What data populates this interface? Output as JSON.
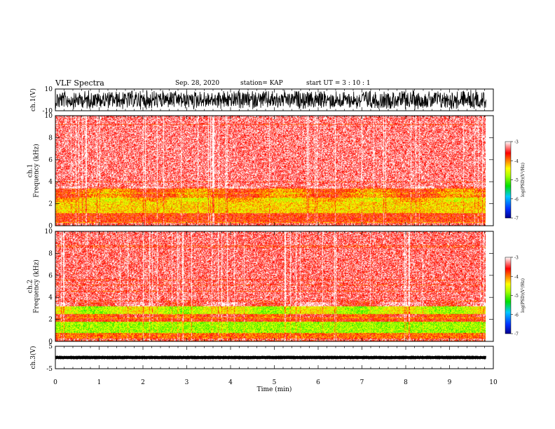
{
  "header": {
    "title": "VLF Spectra",
    "date": "Sep. 28, 2020",
    "station": "station= KAP",
    "start": "start  UT =   3  : 10 : 1"
  },
  "chart_data": [
    {
      "type": "line",
      "panel": "ch1-waveform",
      "ylabel": "ch.1(V)",
      "ylim": [
        -10,
        10
      ],
      "yticks": [
        "10",
        "-10"
      ],
      "xlim": [
        0,
        10
      ],
      "data_xmax": 9.83,
      "note_shape": "dense noisy waveform filling most of range"
    },
    {
      "type": "heatmap",
      "panel": "ch1-spectrogram",
      "ylabel_top": "ch.1",
      "ylabel": "Frequency  (kHz)",
      "ylim": [
        0,
        10
      ],
      "yticks": [
        "0",
        "2",
        "4",
        "6",
        "8",
        "10"
      ],
      "xlim": [
        0,
        10
      ],
      "data_xmax": 9.83,
      "colorbar": {
        "label": "log(PSD)(V²/Hz)",
        "range": [
          -7,
          -3
        ],
        "ticks": [
          "-3",
          "-4",
          "-5",
          "-6",
          "-7"
        ]
      },
      "band_profile": [
        {
          "f_from": 3.4,
          "f_to": 10,
          "level": -3.3
        },
        {
          "f_from": 2.6,
          "f_to": 3.4,
          "level": -3.9
        },
        {
          "f_from": 1.2,
          "f_to": 2.6,
          "level": -4.3
        },
        {
          "f_from": 0.3,
          "f_to": 1.2,
          "level": -3.7
        },
        {
          "f_from": 0,
          "f_to": 0.3,
          "level": -3.4
        }
      ]
    },
    {
      "type": "heatmap",
      "panel": "ch2-spectrogram",
      "ylabel_top": "ch.2",
      "ylabel": "Frequency  (kHz)",
      "ylim": [
        0,
        10
      ],
      "yticks": [
        "0",
        "2",
        "4",
        "6",
        "8",
        "10"
      ],
      "xlim": [
        0,
        10
      ],
      "data_xmax": 9.83,
      "colorbar": {
        "label": "log(PSD)(V²/Hz)",
        "range": [
          -7,
          -3
        ],
        "ticks": [
          "-3",
          "-4",
          "-5",
          "-6",
          "-7"
        ]
      },
      "band_profile": [
        {
          "f_from": 3.2,
          "f_to": 10,
          "level": -3.35
        },
        {
          "f_from": 2.5,
          "f_to": 3.2,
          "level": -4.6
        },
        {
          "f_from": 1.8,
          "f_to": 2.5,
          "level": -3.7
        },
        {
          "f_from": 0.8,
          "f_to": 1.8,
          "level": -4.8
        },
        {
          "f_from": 0.3,
          "f_to": 0.8,
          "level": -3.9
        },
        {
          "f_from": 0,
          "f_to": 0.3,
          "level": -3.4
        }
      ]
    },
    {
      "type": "line",
      "panel": "ch3-waveform",
      "ylabel": "ch.3(V)",
      "ylim": [
        -5,
        5
      ],
      "yticks": [
        "5",
        "-5"
      ],
      "xlim": [
        0,
        10
      ],
      "xticks": [
        "0",
        "1",
        "2",
        "3",
        "4",
        "5",
        "6",
        "7",
        "8",
        "9",
        "10"
      ],
      "xlabel": "Time  (min)",
      "data_xmax": 9.83,
      "baseline": 0,
      "amplitude": 0.8
    }
  ]
}
